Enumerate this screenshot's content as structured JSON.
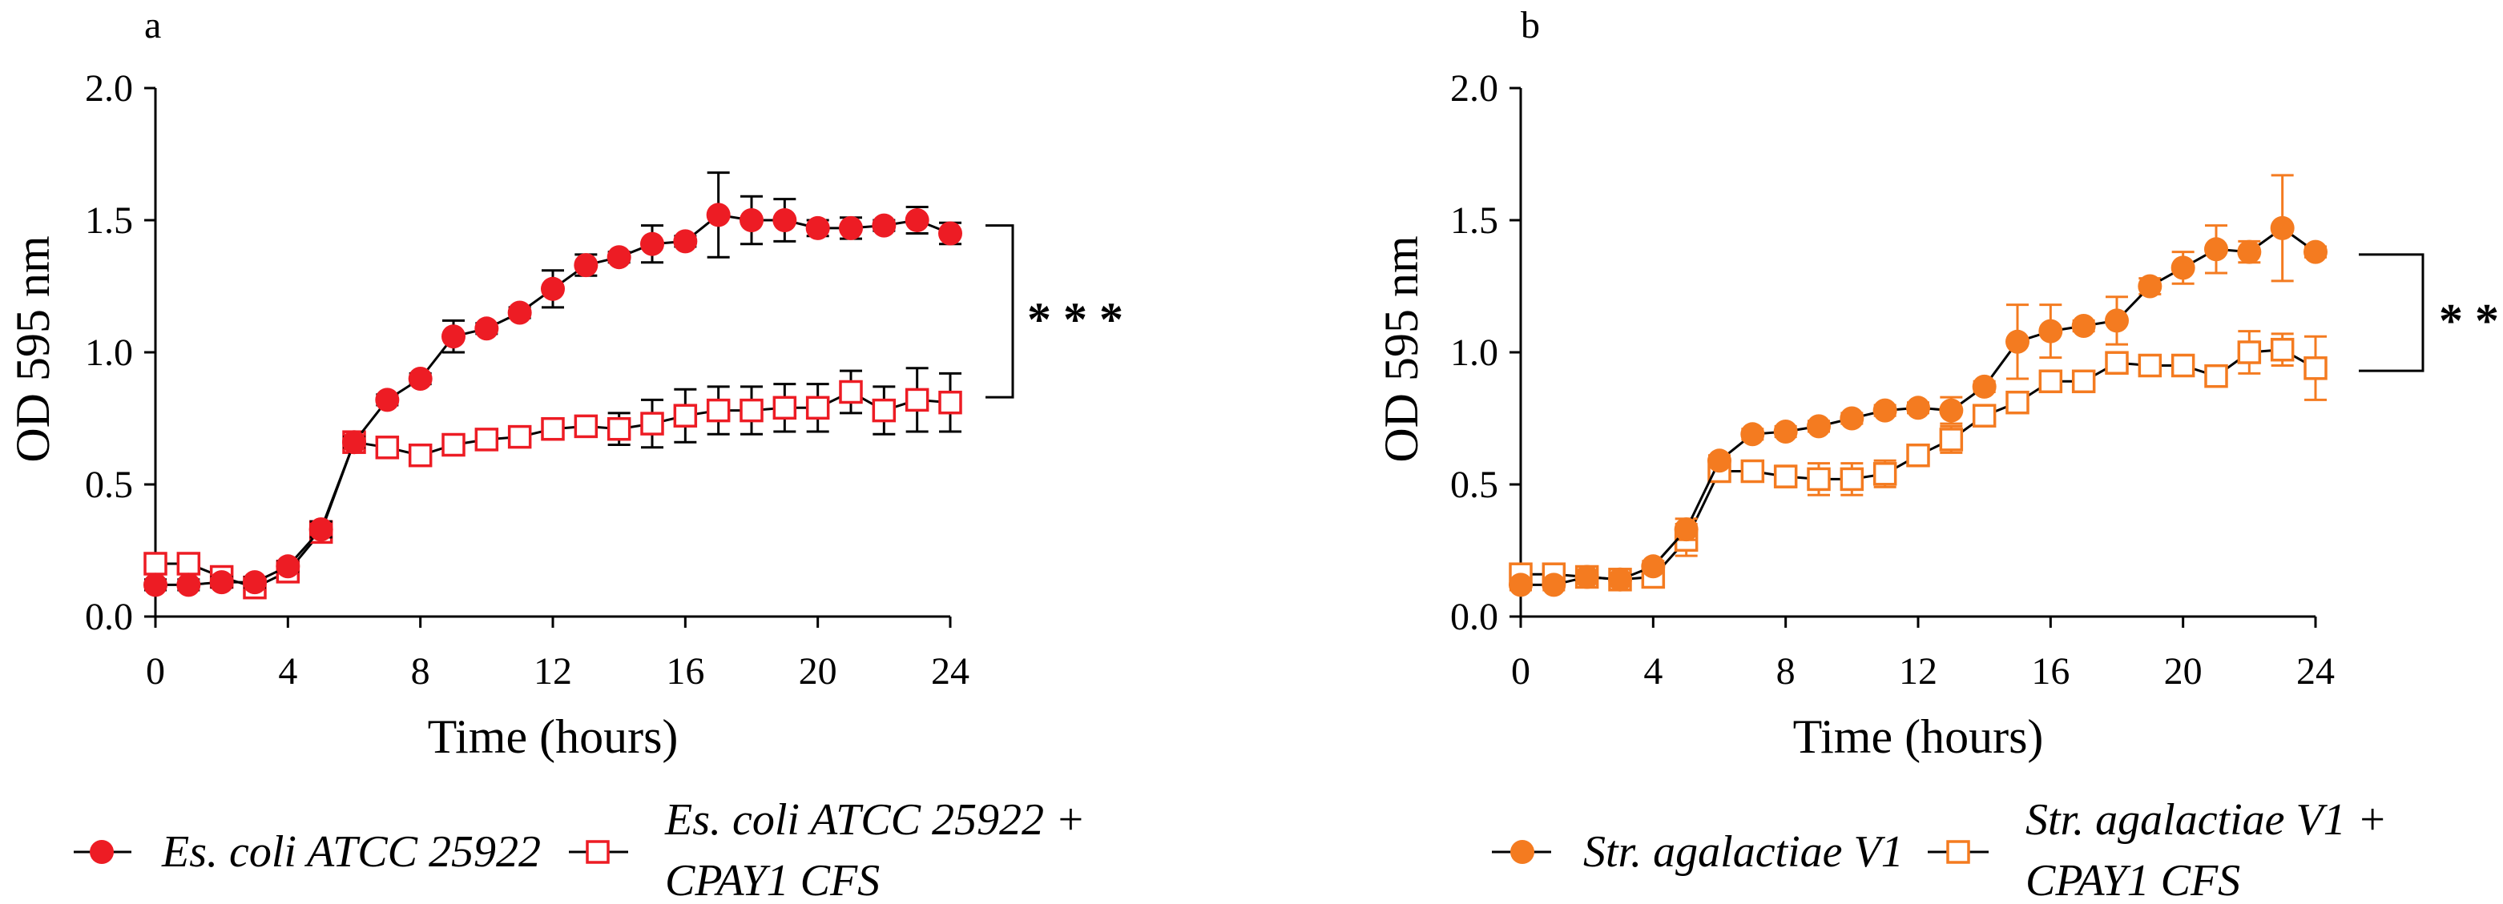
{
  "chart_data": [
    {
      "type": "line",
      "panel_label": "a",
      "xlabel": "Time (hours)",
      "ylabel": "OD 595 nm",
      "xlim": [
        0,
        24
      ],
      "ylim": [
        0,
        2.0
      ],
      "xticks": [
        "0",
        "4",
        "8",
        "12",
        "16",
        "20",
        "24"
      ],
      "yticks": [
        "0.0",
        "0.5",
        "1.0",
        "1.5",
        "2.0"
      ],
      "x": [
        0,
        1,
        2,
        3,
        4,
        5,
        6,
        7,
        8,
        9,
        10,
        11,
        12,
        13,
        14,
        15,
        16,
        17,
        18,
        19,
        20,
        21,
        22,
        23,
        24
      ],
      "line_color": "#000000",
      "series": [
        {
          "legend_lines": [
            "Es. coli ATCC 25922"
          ],
          "marker": "filled-circle",
          "color": "#ed1c24",
          "error_color": "#000000",
          "values": [
            0.12,
            0.12,
            0.13,
            0.13,
            0.19,
            0.33,
            0.66,
            0.82,
            0.9,
            1.06,
            1.09,
            1.15,
            1.24,
            1.33,
            1.36,
            1.41,
            1.42,
            1.52,
            1.5,
            1.5,
            1.47,
            1.47,
            1.48,
            1.5,
            1.45
          ],
          "errors": [
            0.02,
            0.02,
            0.02,
            0.02,
            0.02,
            0.03,
            0.02,
            0.02,
            0.02,
            0.06,
            0.02,
            0.02,
            0.07,
            0.04,
            0.02,
            0.07,
            0.02,
            0.16,
            0.09,
            0.08,
            0.03,
            0.04,
            0.02,
            0.05,
            0.04
          ]
        },
        {
          "legend_lines": [
            "Es. coli ATCC 25922 +",
            "CPAY1 CFS"
          ],
          "marker": "open-square",
          "color": "#ed1c24",
          "error_color": "#000000",
          "values": [
            0.2,
            0.2,
            0.15,
            0.11,
            0.17,
            0.32,
            0.66,
            0.64,
            0.61,
            0.65,
            0.67,
            0.68,
            0.71,
            0.72,
            0.71,
            0.73,
            0.76,
            0.78,
            0.78,
            0.79,
            0.79,
            0.85,
            0.78,
            0.82,
            0.81
          ],
          "errors": [
            0.02,
            0.02,
            0.02,
            0.02,
            0.02,
            0.02,
            0.02,
            0.02,
            0.02,
            0.03,
            0.03,
            0.02,
            0.02,
            0.02,
            0.06,
            0.09,
            0.1,
            0.09,
            0.09,
            0.09,
            0.09,
            0.08,
            0.09,
            0.12,
            0.11
          ]
        }
      ],
      "significance": {
        "label": "* * *",
        "y_range": [
          1.48,
          0.83
        ]
      }
    },
    {
      "type": "line",
      "panel_label": "b",
      "xlabel": "Time (hours)",
      "ylabel": "OD 595 nm",
      "xlim": [
        0,
        24
      ],
      "ylim": [
        0,
        2.0
      ],
      "xticks": [
        "0",
        "4",
        "8",
        "12",
        "16",
        "20",
        "24"
      ],
      "yticks": [
        "0.0",
        "0.5",
        "1.0",
        "1.5",
        "2.0"
      ],
      "x": [
        0,
        1,
        2,
        3,
        4,
        5,
        6,
        7,
        8,
        9,
        10,
        11,
        12,
        13,
        14,
        15,
        16,
        17,
        18,
        19,
        20,
        21,
        22,
        23,
        24
      ],
      "line_color": "#000000",
      "series": [
        {
          "legend_lines": [
            "Str. agalactiae V1"
          ],
          "marker": "filled-circle",
          "color": "#f47b20",
          "error_color": "#f47b20",
          "values": [
            0.12,
            0.12,
            0.15,
            0.14,
            0.19,
            0.33,
            0.59,
            0.69,
            0.7,
            0.72,
            0.75,
            0.78,
            0.79,
            0.78,
            0.87,
            1.04,
            1.08,
            1.1,
            1.12,
            1.25,
            1.32,
            1.39,
            1.38,
            1.47,
            1.38
          ],
          "errors": [
            0.02,
            0.02,
            0.02,
            0.02,
            0.02,
            0.04,
            0.02,
            0.02,
            0.02,
            0.02,
            0.02,
            0.02,
            0.02,
            0.05,
            0.02,
            0.14,
            0.1,
            0.02,
            0.09,
            0.03,
            0.06,
            0.09,
            0.04,
            0.2,
            0.02
          ]
        },
        {
          "legend_lines": [
            "Str. agalactiae V1 +",
            "CPAY1 CFS"
          ],
          "marker": "open-square",
          "color": "#f47b20",
          "error_color": "#f47b20",
          "values": [
            0.16,
            0.16,
            0.15,
            0.14,
            0.15,
            0.29,
            0.55,
            0.55,
            0.53,
            0.52,
            0.52,
            0.54,
            0.61,
            0.67,
            0.76,
            0.81,
            0.89,
            0.89,
            0.96,
            0.95,
            0.95,
            0.91,
            1.0,
            1.01,
            0.94
          ],
          "errors": [
            0.02,
            0.02,
            0.02,
            0.02,
            0.02,
            0.06,
            0.02,
            0.03,
            0.04,
            0.06,
            0.06,
            0.05,
            0.04,
            0.05,
            0.02,
            0.02,
            0.04,
            0.02,
            0.04,
            0.02,
            0.02,
            0.02,
            0.08,
            0.06,
            0.12
          ]
        }
      ],
      "significance": {
        "label": "* *",
        "y_range": [
          1.37,
          0.93
        ]
      }
    }
  ]
}
